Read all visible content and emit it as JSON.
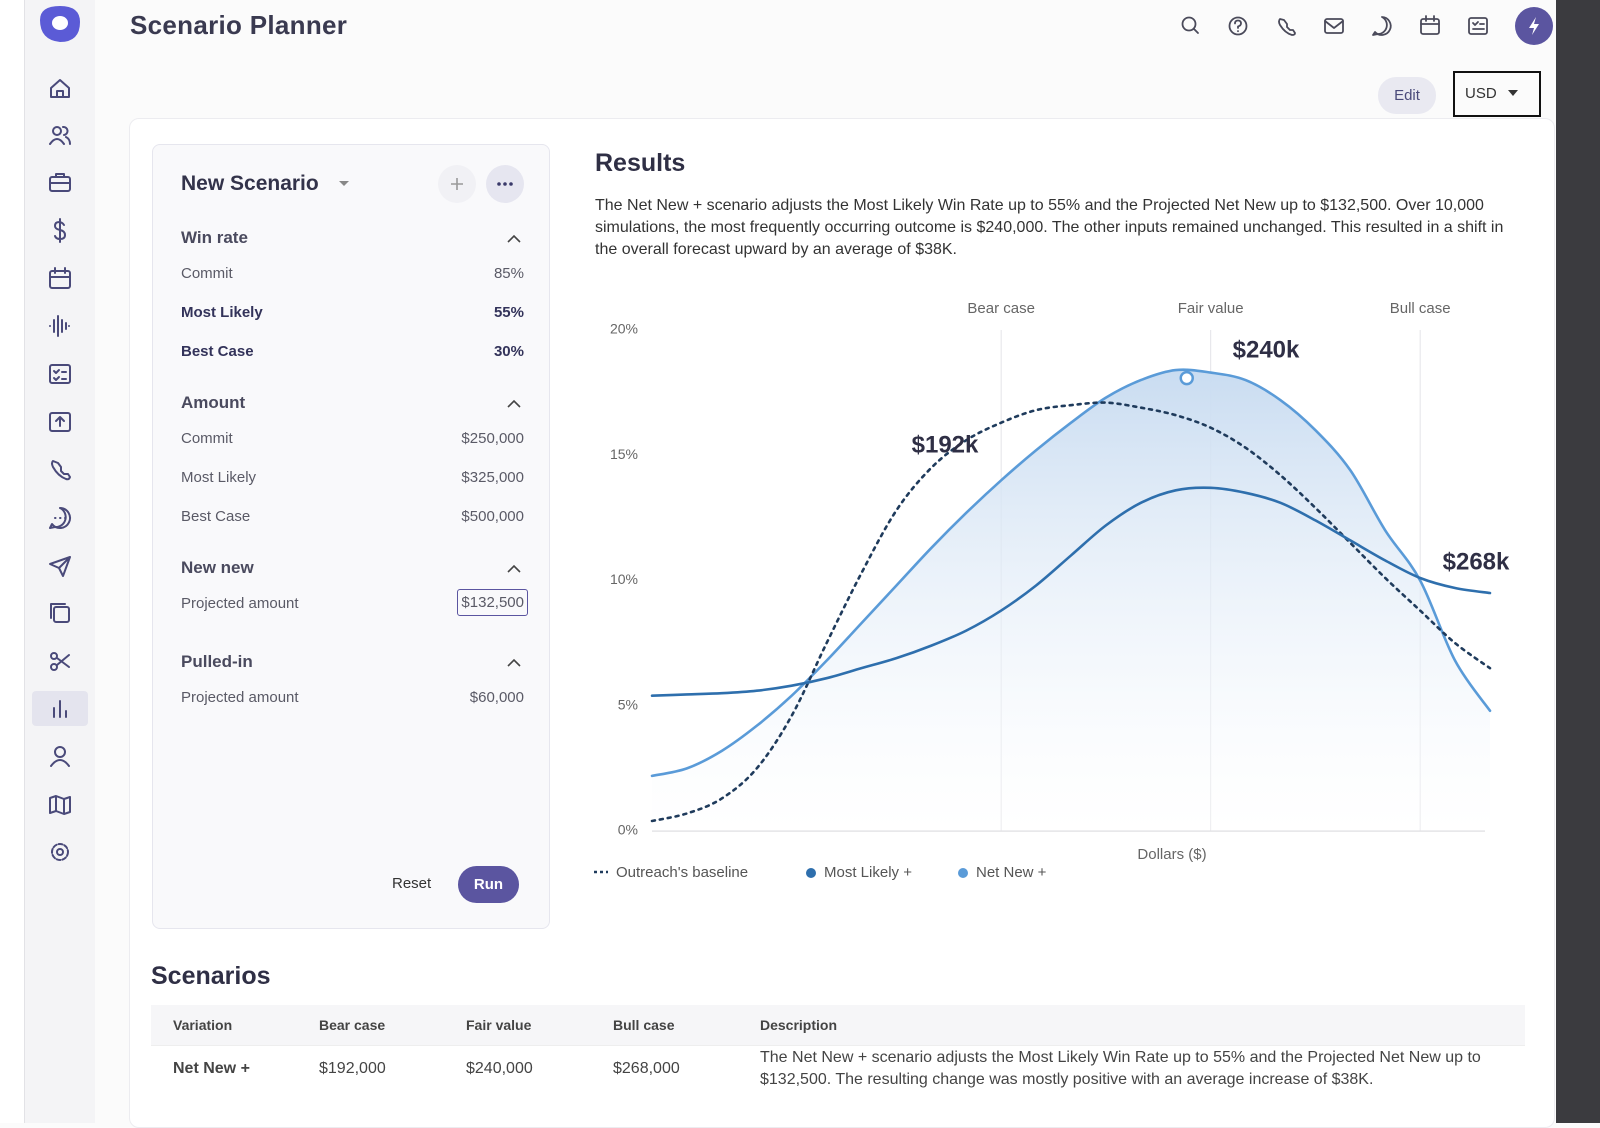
{
  "header": {
    "title": "Scenario Planner"
  },
  "toolbar": {
    "edit": "Edit",
    "currency": "USD"
  },
  "scenario_panel": {
    "title": "New Scenario",
    "sections": [
      {
        "title": "Win rate",
        "rows": [
          {
            "label": "Commit",
            "value": "85%"
          },
          {
            "label": "Most Likely",
            "value": "55%"
          },
          {
            "label": "Best Case",
            "value": "30%"
          }
        ]
      },
      {
        "title": "Amount",
        "rows": [
          {
            "label": "Commit",
            "value": "$250,000"
          },
          {
            "label": "Most Likely",
            "value": "$325,000"
          },
          {
            "label": "Best Case",
            "value": "$500,000"
          }
        ]
      },
      {
        "title": "New new",
        "rows": [
          {
            "label": "Projected amount",
            "value": "$132,500"
          }
        ]
      },
      {
        "title": "Pulled-in",
        "rows": [
          {
            "label": "Projected amount",
            "value": "$60,000"
          }
        ]
      }
    ],
    "reset": "Reset",
    "run": "Run"
  },
  "results": {
    "title": "Results",
    "description": "The Net New + scenario adjusts the Most Likely Win Rate up to 55% and the Projected Net New up to $132,500. Over 10,000 simulations, the most frequently occurring outcome is $240,000. The other inputs remained unchanged. This resulted in a shift in the overall forecast upward by an average of $38K."
  },
  "chart_data": {
    "type": "line",
    "categories": [
      null,
      null,
      null,
      null,
      null,
      null,
      null,
      null,
      null,
      null,
      "Bear case",
      null,
      null,
      null,
      null,
      null,
      "Fair value",
      null,
      null,
      null,
      null,
      null,
      "Bull case",
      null,
      null
    ],
    "x_label": "Dollars ($)",
    "ylim": [
      0,
      20
    ],
    "yticks": [
      {
        "value": 0,
        "label": "0%"
      },
      {
        "value": 5,
        "label": "5%"
      },
      {
        "value": 10,
        "label": "10%"
      },
      {
        "value": 15,
        "label": "15%"
      },
      {
        "value": 20,
        "label": "20%"
      }
    ],
    "grid": true,
    "series": [
      {
        "name": "Outreach's baseline",
        "color": "#1f3b5c",
        "style": "dotted",
        "values": [
          0.4,
          0.7,
          1.3,
          2.5,
          4.6,
          7.5,
          10.3,
          12.8,
          14.5,
          15.6,
          16.3,
          16.8,
          17.0,
          17.1,
          16.9,
          16.6,
          16.1,
          15.3,
          14.2,
          12.9,
          11.5,
          10.1,
          8.8,
          7.5,
          6.5
        ]
      },
      {
        "name": "Most Likely +",
        "color": "#2e6fad",
        "style": "solid",
        "values": [
          5.4,
          5.45,
          5.5,
          5.6,
          5.8,
          6.1,
          6.5,
          6.9,
          7.4,
          8.0,
          8.8,
          9.8,
          11.0,
          12.2,
          13.1,
          13.6,
          13.7,
          13.5,
          13.1,
          12.4,
          11.6,
          10.8,
          10.1,
          9.7,
          9.5
        ]
      },
      {
        "name": "Net New +",
        "color": "#5a9bd8",
        "style": "solid",
        "fill": true,
        "values": [
          2.2,
          2.5,
          3.2,
          4.2,
          5.4,
          6.8,
          8.3,
          9.8,
          11.3,
          12.7,
          14.0,
          15.2,
          16.3,
          17.3,
          18.0,
          18.4,
          18.3,
          18.0,
          17.2,
          16.0,
          14.4,
          12.0,
          10.0,
          6.8,
          4.8
        ]
      }
    ],
    "annotations": [
      "$192k",
      "$240k",
      "$268k"
    ]
  },
  "scenarios": {
    "title": "Scenarios",
    "columns": [
      "Variation",
      "Bear case",
      "Fair value",
      "Bull case",
      "Description"
    ],
    "rows": [
      [
        "Net New +",
        "$192,000",
        "$240,000",
        "$268,000",
        "The Net New + scenario adjusts the Most Likely Win Rate up to 55% and the Projected Net New up to $132,500. The resulting change was mostly positive with an average increase of $38K."
      ]
    ]
  }
}
